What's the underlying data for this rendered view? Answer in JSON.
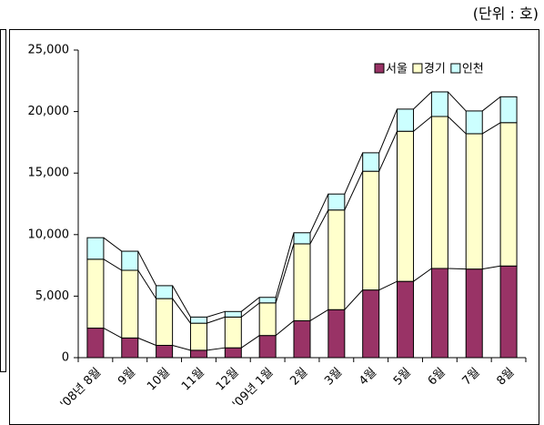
{
  "chart_data": {
    "type": "stacked-bar",
    "unit_label": "(단위 : 호)",
    "categories": [
      "'08년 8월",
      "9월",
      "10월",
      "11월",
      "12월",
      "'09년 1월",
      "2월",
      "3월",
      "4월",
      "5월",
      "6월",
      "7월",
      "8월"
    ],
    "series": [
      {
        "name": "서울",
        "color": "#993366",
        "values": [
          2400,
          1600,
          1000,
          600,
          800,
          1800,
          3000,
          3900,
          5500,
          6200,
          7250,
          7200,
          7450
        ]
      },
      {
        "name": "경기",
        "color": "#ffffcc",
        "values": [
          5600,
          5500,
          3800,
          2200,
          2500,
          2650,
          6250,
          8100,
          9650,
          12200,
          12350,
          11000,
          11650
        ]
      },
      {
        "name": "인천",
        "color": "#ccffff",
        "values": [
          1750,
          1550,
          1050,
          500,
          450,
          450,
          900,
          1300,
          1500,
          1800,
          2000,
          1850,
          2100
        ]
      }
    ],
    "ylim": [
      0,
      25000
    ],
    "yticks": [
      {
        "value": 0,
        "label": "0"
      },
      {
        "value": 5000,
        "label": "5,000"
      },
      {
        "value": 10000,
        "label": "10,000"
      },
      {
        "value": 15000,
        "label": "15,000"
      },
      {
        "value": 20000,
        "label": "20,000"
      },
      {
        "value": 25000,
        "label": "25,000"
      }
    ],
    "legend": "top-right"
  }
}
